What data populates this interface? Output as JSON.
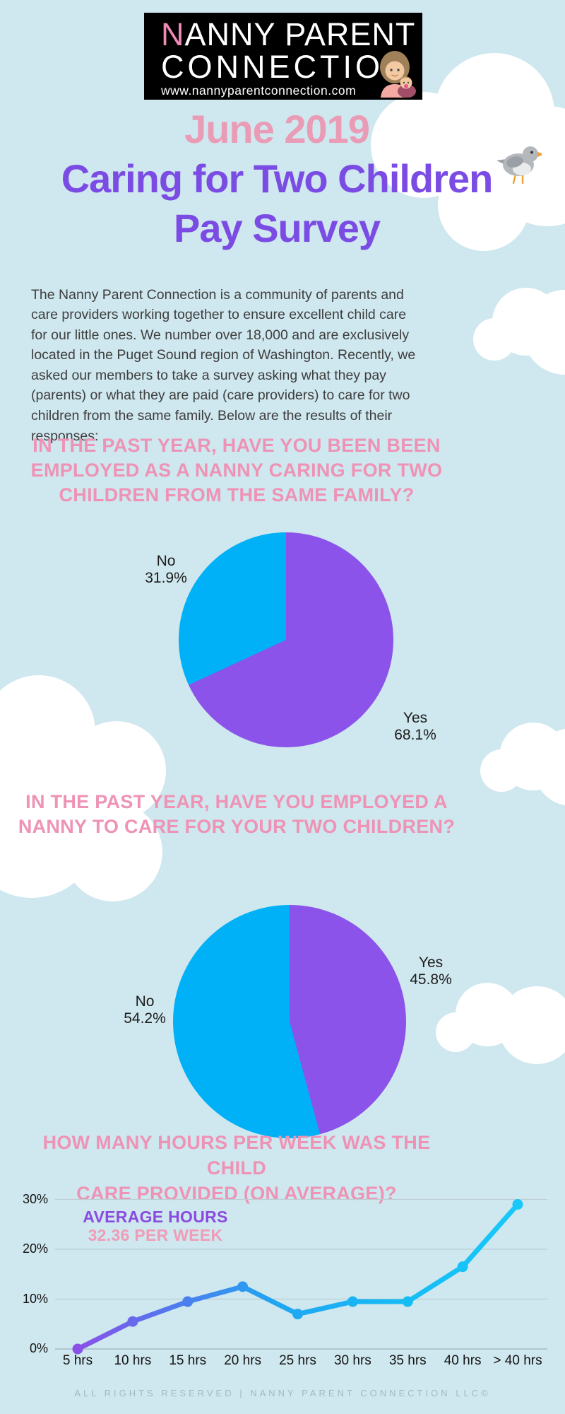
{
  "logo": {
    "line1_accent": "N",
    "line1_rest": "ANNY PARENT",
    "line2": "CONNECTION",
    "url": "www.nannyparentconnection.com",
    "avatar_icon": "mother-holding-baby"
  },
  "title": {
    "line1": "June 2019",
    "line2": "Caring for Two Children",
    "line3": "Pay Survey"
  },
  "intro": "The Nanny Parent Connection is a community of parents and care providers working together to ensure excellent child care for our little ones. We number over 18,000 and are exclusively located in the Puget Sound region of Washington. Recently, we asked our members to take a survey asking what they pay (parents) or what they are paid (care providers) to care for two children from the same family. Below are the results of their responses:",
  "q1": {
    "lines": [
      "IN THE PAST YEAR, HAVE YOU BEEN BEEN",
      "EMPLOYED AS A NANNY CARING FOR TWO",
      "CHILDREN FROM THE SAME FAMILY?"
    ]
  },
  "q2": {
    "lines": [
      "IN THE PAST YEAR, HAVE YOU EMPLOYED A",
      "NANNY TO CARE FOR YOUR TWO CHILDREN?"
    ]
  },
  "q3": {
    "lines": [
      "HOW MANY HOURS PER WEEK WAS THE CHILD",
      "CARE PROVIDED (ON AVERAGE)?"
    ]
  },
  "pie1_labels": {
    "no_name": "No",
    "no_value": "31.9%",
    "yes_name": "Yes",
    "yes_value": "68.1%"
  },
  "pie2_labels": {
    "no_name": "No",
    "no_value": "54.2%",
    "yes_name": "Yes",
    "yes_value": "45.8%"
  },
  "annotation": {
    "line1": "AVERAGE HOURS",
    "line2": "32.36 PER WEEK"
  },
  "colors": {
    "background": "#cfe7ee",
    "title_pink": "#ea9bb5",
    "title_purple": "#7b4ce4",
    "question_pink": "#ee93b5",
    "pie_purple": "#8b53e9",
    "pie_cyan": "#00b1f8",
    "annotation_purple": "#8a4be0",
    "annotation_pink": "#f09cb8",
    "line_gradient_start": "#8a50e8",
    "line_gradient_end": "#18c8f8"
  },
  "chart_data": [
    {
      "type": "pie",
      "title": "IN THE PAST YEAR, HAVE YOU BEEN BEEN EMPLOYED AS A NANNY CARING FOR TWO CHILDREN FROM THE SAME FAMILY?",
      "labels": [
        "Yes",
        "No"
      ],
      "values": [
        68.1,
        31.9
      ],
      "colors": [
        "#8b53e9",
        "#00b1f8"
      ],
      "start_angle": "12-oclock",
      "direction": "clockwise",
      "label_position": "outside"
    },
    {
      "type": "pie",
      "title": "IN THE PAST YEAR, HAVE YOU EMPLOYED A NANNY TO CARE FOR YOUR TWO CHILDREN?",
      "labels": [
        "Yes",
        "No"
      ],
      "values": [
        45.8,
        54.2
      ],
      "colors": [
        "#8b53e9",
        "#00b1f8"
      ],
      "start_angle": "12-oclock",
      "direction": "clockwise",
      "label_position": "outside"
    },
    {
      "type": "line",
      "title": "HOW MANY HOURS PER WEEK WAS THE CHILD CARE PROVIDED (ON AVERAGE)?",
      "categories": [
        "5 hrs",
        "10 hrs",
        "15 hrs",
        "20 hrs",
        "25 hrs",
        "30 hrs",
        "35 hrs",
        "40 hrs",
        "> 40 hrs"
      ],
      "values": [
        0,
        5.5,
        9.5,
        12.5,
        7,
        9.5,
        9.5,
        16.5,
        29
      ],
      "ylim": [
        0,
        30
      ],
      "yticks": [
        "0%",
        "10%",
        "20%",
        "30%"
      ],
      "grid": true,
      "annotation": [
        "AVERAGE HOURS",
        "32.36 PER WEEK"
      ],
      "xlabel": "",
      "ylabel": ""
    }
  ],
  "footer": "ALL RIGHTS RESERVED | NANNY PARENT CONNECTION LLC©"
}
